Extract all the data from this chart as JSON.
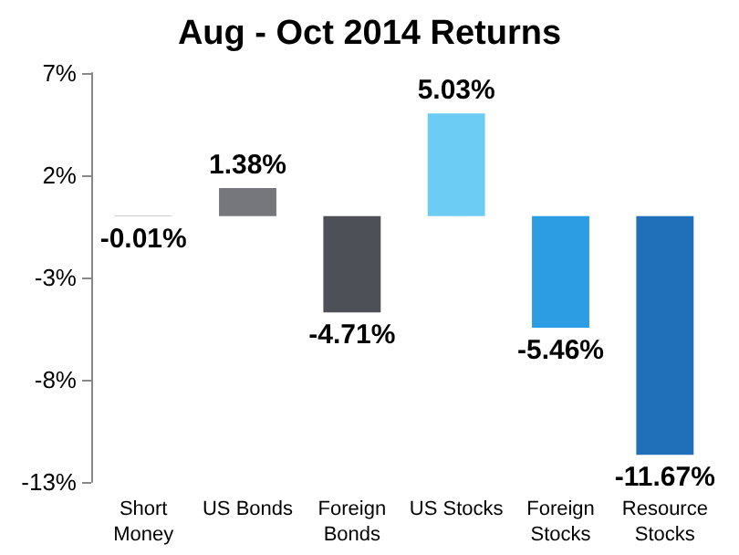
{
  "chart_data": {
    "type": "bar",
    "title": "Aug - Oct 2014 Returns",
    "categories": [
      "Short\nMoney",
      "US Bonds",
      "Foreign\nBonds",
      "US Stocks",
      "Foreign\nStocks",
      "Resource\nStocks"
    ],
    "values": [
      -0.01,
      1.38,
      -4.71,
      5.03,
      -5.46,
      -11.67
    ],
    "colors": [
      "#3c3c40",
      "#76777c",
      "#4e5058",
      "#6cccf4",
      "#2c9de2",
      "#1f70b8"
    ],
    "value_labels": [
      "-0.01%",
      "1.38%",
      "-4.71%",
      "5.03%",
      "-5.46%",
      "-11.67%"
    ],
    "ylim": [
      -13,
      7
    ],
    "yticks": [
      {
        "value": -13,
        "label": "-13%"
      },
      {
        "value": -8,
        "label": "-8%"
      },
      {
        "value": -3,
        "label": "-3%"
      },
      {
        "value": 2,
        "label": "2%"
      },
      {
        "value": 7,
        "label": "7%"
      }
    ],
    "grid": false
  }
}
